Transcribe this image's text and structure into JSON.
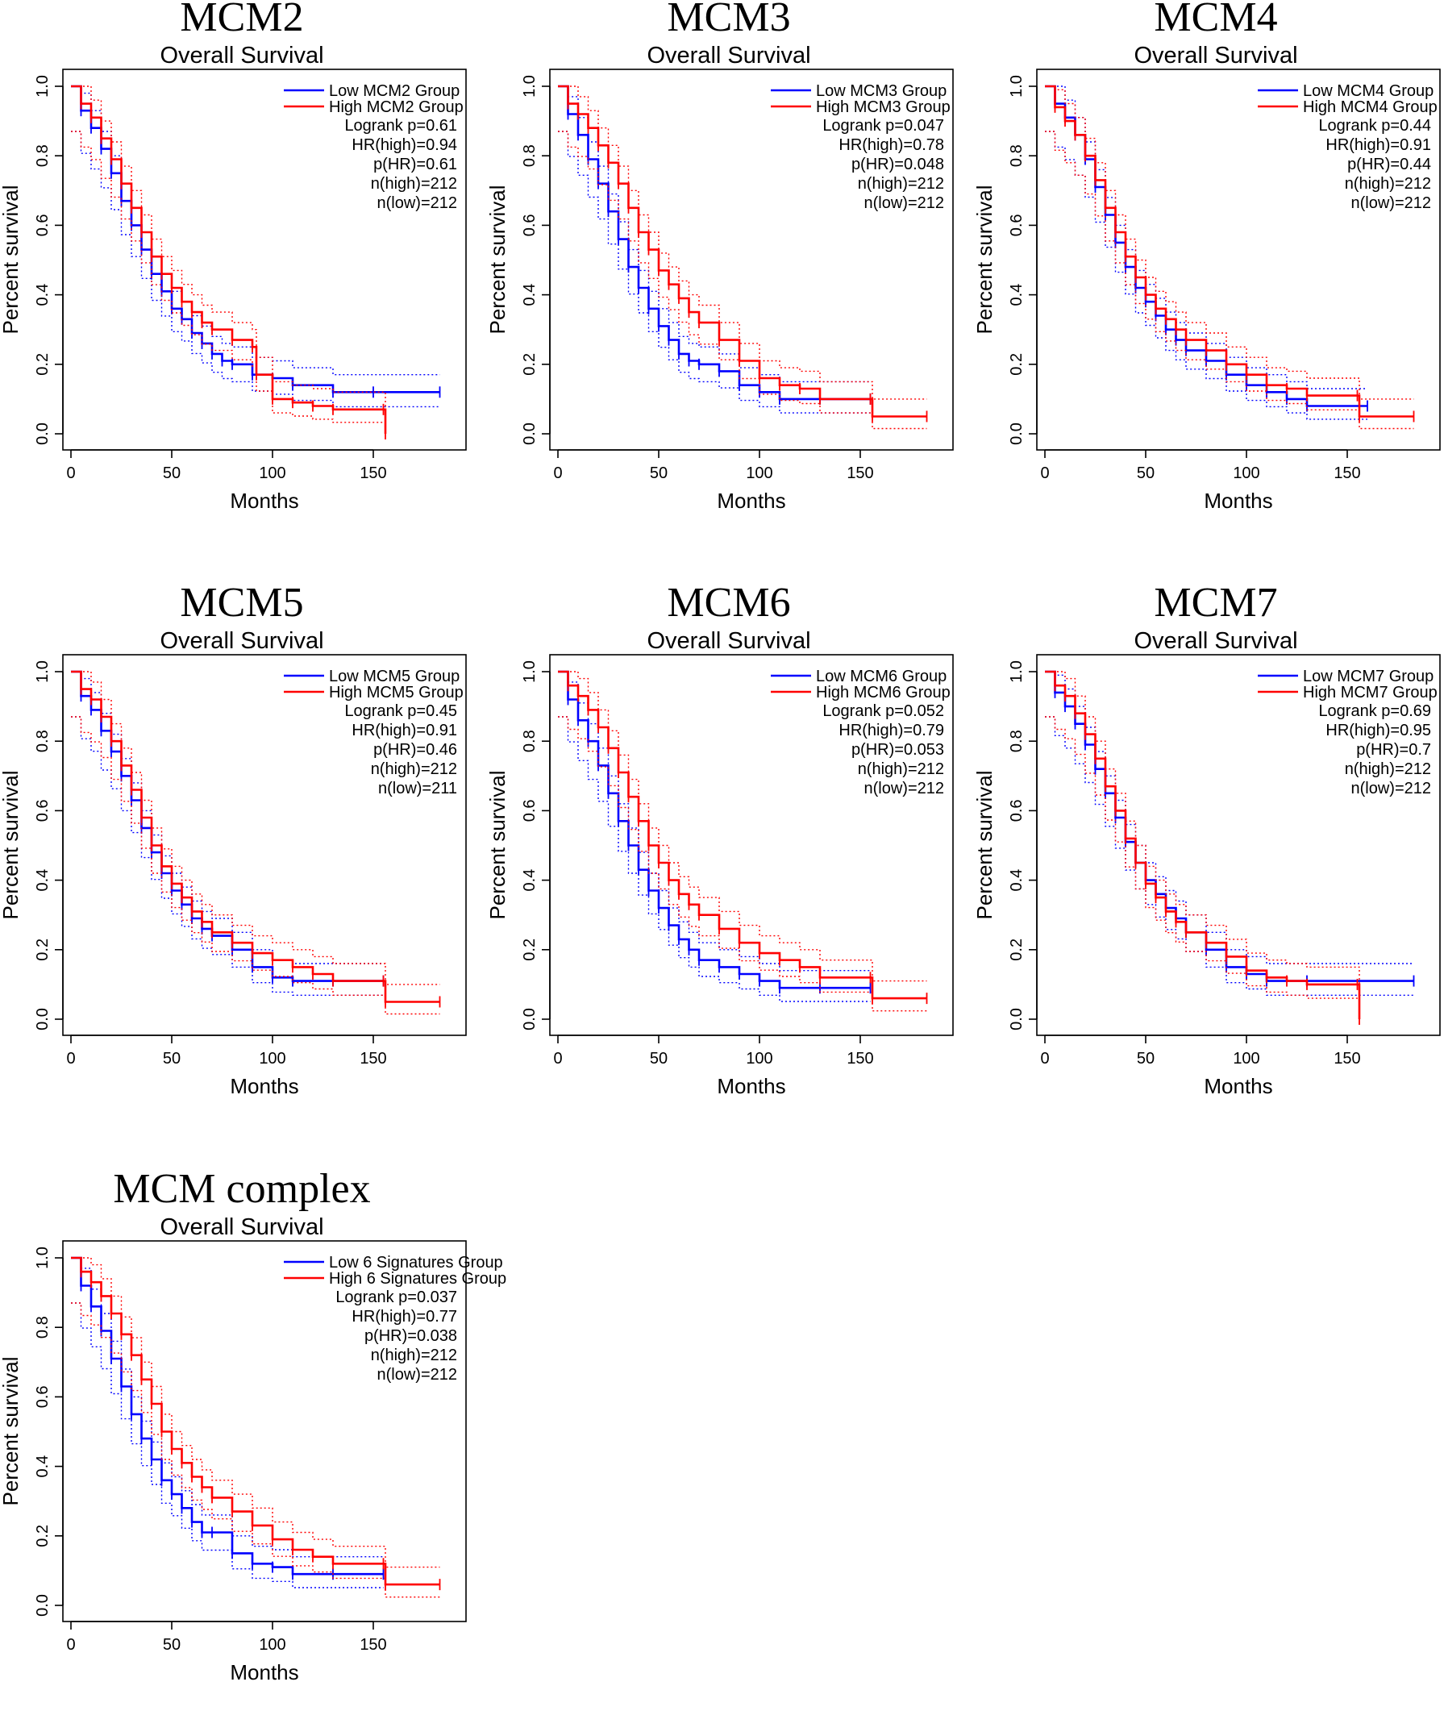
{
  "colors": {
    "low": "#0000ff",
    "high": "#ff0000",
    "axis": "#000000"
  },
  "chart_data": [
    {
      "type": "line",
      "gene_title": "MCM2",
      "title": "Overall Survival",
      "xlabel": "Months",
      "ylabel": "Percent survival",
      "xlim": [
        0,
        190
      ],
      "ylim": [
        0,
        1.0
      ],
      "xticks": [
        0,
        50,
        100,
        150
      ],
      "yticks": [
        "0.0",
        "0.2",
        "0.4",
        "0.6",
        "0.8",
        "1.0"
      ],
      "legend": [
        "Low MCM2 Group",
        "High MCM2 Group"
      ],
      "stats": [
        "Logrank p=0.61",
        "HR(high)=0.94",
        "p(HR)=0.61",
        "n(high)=212",
        "n(low)=212"
      ],
      "series": [
        {
          "name": "Low MCM2 Group",
          "x": [
            0,
            5,
            10,
            15,
            20,
            25,
            30,
            35,
            40,
            45,
            50,
            55,
            60,
            65,
            70,
            75,
            80,
            90,
            100,
            110,
            130,
            150,
            183
          ],
          "y": [
            1.0,
            0.93,
            0.88,
            0.82,
            0.75,
            0.67,
            0.6,
            0.53,
            0.46,
            0.41,
            0.36,
            0.33,
            0.29,
            0.26,
            0.23,
            0.21,
            0.2,
            0.17,
            0.16,
            0.14,
            0.12,
            0.12,
            0.12
          ]
        },
        {
          "name": "High MCM2 Group",
          "x": [
            0,
            5,
            10,
            15,
            20,
            25,
            30,
            35,
            40,
            45,
            50,
            55,
            60,
            65,
            70,
            80,
            90,
            92,
            100,
            110,
            120,
            130,
            155,
            156
          ],
          "y": [
            1.0,
            0.95,
            0.91,
            0.85,
            0.79,
            0.72,
            0.65,
            0.58,
            0.51,
            0.46,
            0.42,
            0.38,
            0.35,
            0.32,
            0.3,
            0.27,
            0.25,
            0.17,
            0.1,
            0.09,
            0.08,
            0.07,
            0.07,
            0.0
          ]
        }
      ]
    },
    {
      "type": "line",
      "gene_title": "MCM3",
      "title": "Overall Survival",
      "xlabel": "Months",
      "ylabel": "Percent survival",
      "xlim": [
        0,
        190
      ],
      "ylim": [
        0,
        1.0
      ],
      "xticks": [
        0,
        50,
        100,
        150
      ],
      "yticks": [
        "0.0",
        "0.2",
        "0.4",
        "0.6",
        "0.8",
        "1.0"
      ],
      "legend": [
        "Low MCM3 Group",
        "High MCM3 Group"
      ],
      "stats": [
        "Logrank p=0.047",
        "HR(high)=0.78",
        "p(HR)=0.048",
        "n(high)=212",
        "n(low)=212"
      ],
      "series": [
        {
          "name": "Low MCM3 Group",
          "x": [
            0,
            5,
            10,
            15,
            20,
            25,
            30,
            35,
            40,
            45,
            50,
            55,
            60,
            65,
            70,
            80,
            90,
            100,
            110,
            130,
            155
          ],
          "y": [
            1.0,
            0.92,
            0.86,
            0.79,
            0.72,
            0.64,
            0.56,
            0.48,
            0.42,
            0.36,
            0.31,
            0.27,
            0.23,
            0.21,
            0.2,
            0.18,
            0.14,
            0.12,
            0.1,
            0.1,
            0.1
          ]
        },
        {
          "name": "High MCM3 Group",
          "x": [
            0,
            5,
            10,
            15,
            20,
            25,
            30,
            35,
            40,
            45,
            50,
            55,
            60,
            65,
            70,
            80,
            90,
            100,
            110,
            120,
            130,
            155,
            156,
            183
          ],
          "y": [
            1.0,
            0.95,
            0.92,
            0.88,
            0.83,
            0.78,
            0.72,
            0.65,
            0.58,
            0.53,
            0.47,
            0.43,
            0.39,
            0.35,
            0.32,
            0.27,
            0.21,
            0.16,
            0.14,
            0.13,
            0.1,
            0.1,
            0.05,
            0.05
          ]
        }
      ]
    },
    {
      "type": "line",
      "gene_title": "MCM4",
      "title": "Overall Survival",
      "xlabel": "Months",
      "ylabel": "Percent survival",
      "xlim": [
        0,
        190
      ],
      "ylim": [
        0,
        1.0
      ],
      "xticks": [
        0,
        50,
        100,
        150
      ],
      "yticks": [
        "0.0",
        "0.2",
        "0.4",
        "0.6",
        "0.8",
        "1.0"
      ],
      "legend": [
        "Low MCM4 Group",
        "High MCM4 Group"
      ],
      "stats": [
        "Logrank p=0.44",
        "HR(high)=0.91",
        "p(HR)=0.44",
        "n(high)=212",
        "n(low)=212"
      ],
      "series": [
        {
          "name": "Low MCM4 Group",
          "x": [
            0,
            5,
            10,
            15,
            20,
            25,
            30,
            35,
            40,
            45,
            50,
            55,
            60,
            65,
            70,
            80,
            90,
            100,
            110,
            120,
            130,
            160
          ],
          "y": [
            1.0,
            0.95,
            0.91,
            0.86,
            0.79,
            0.71,
            0.63,
            0.55,
            0.48,
            0.42,
            0.38,
            0.34,
            0.3,
            0.27,
            0.24,
            0.21,
            0.17,
            0.14,
            0.12,
            0.1,
            0.08,
            0.08
          ]
        },
        {
          "name": "High MCM4 Group",
          "x": [
            0,
            5,
            10,
            15,
            20,
            25,
            30,
            35,
            40,
            45,
            50,
            55,
            60,
            65,
            70,
            80,
            90,
            100,
            110,
            120,
            130,
            155,
            156,
            183
          ],
          "y": [
            1.0,
            0.94,
            0.9,
            0.86,
            0.8,
            0.73,
            0.65,
            0.58,
            0.51,
            0.45,
            0.4,
            0.36,
            0.33,
            0.3,
            0.27,
            0.24,
            0.2,
            0.17,
            0.14,
            0.13,
            0.11,
            0.11,
            0.05,
            0.05
          ]
        }
      ]
    },
    {
      "type": "line",
      "gene_title": "MCM5",
      "title": "Overall Survival",
      "xlabel": "Months",
      "ylabel": "Percent survival",
      "xlim": [
        0,
        190
      ],
      "ylim": [
        0,
        1.0
      ],
      "xticks": [
        0,
        50,
        100,
        150
      ],
      "yticks": [
        "0.0",
        "0.2",
        "0.4",
        "0.6",
        "0.8",
        "1.0"
      ],
      "legend": [
        "Low MCM5 Group",
        "High MCM5 Group"
      ],
      "stats": [
        "Logrank p=0.45",
        "HR(high)=0.91",
        "p(HR)=0.46",
        "n(high)=212",
        "n(low)=211"
      ],
      "series": [
        {
          "name": "Low MCM5 Group",
          "x": [
            0,
            5,
            10,
            15,
            20,
            25,
            30,
            35,
            40,
            45,
            50,
            55,
            60,
            65,
            70,
            80,
            90,
            100,
            110,
            130,
            155
          ],
          "y": [
            1.0,
            0.93,
            0.89,
            0.83,
            0.77,
            0.7,
            0.63,
            0.55,
            0.48,
            0.42,
            0.37,
            0.33,
            0.29,
            0.26,
            0.24,
            0.2,
            0.15,
            0.12,
            0.11,
            0.11,
            0.11
          ]
        },
        {
          "name": "High MCM5 Group",
          "x": [
            0,
            5,
            10,
            15,
            20,
            25,
            30,
            35,
            40,
            45,
            50,
            55,
            60,
            65,
            70,
            80,
            90,
            100,
            110,
            120,
            130,
            155,
            156,
            183
          ],
          "y": [
            1.0,
            0.95,
            0.92,
            0.87,
            0.8,
            0.73,
            0.66,
            0.58,
            0.5,
            0.44,
            0.39,
            0.35,
            0.31,
            0.28,
            0.25,
            0.22,
            0.19,
            0.17,
            0.15,
            0.13,
            0.11,
            0.11,
            0.05,
            0.05
          ]
        }
      ]
    },
    {
      "type": "line",
      "gene_title": "MCM6",
      "title": "Overall Survival",
      "xlabel": "Months",
      "ylabel": "Percent survival",
      "xlim": [
        0,
        190
      ],
      "ylim": [
        0,
        1.0
      ],
      "xticks": [
        0,
        50,
        100,
        150
      ],
      "yticks": [
        "0.0",
        "0.2",
        "0.4",
        "0.6",
        "0.8",
        "1.0"
      ],
      "legend": [
        "Low MCM6 Group",
        "High MCM6 Group"
      ],
      "stats": [
        "Logrank p=0.052",
        "HR(high)=0.79",
        "p(HR)=0.053",
        "n(high)=212",
        "n(low)=212"
      ],
      "series": [
        {
          "name": "Low MCM6 Group",
          "x": [
            0,
            5,
            10,
            15,
            20,
            25,
            30,
            35,
            40,
            45,
            50,
            55,
            60,
            65,
            70,
            80,
            90,
            100,
            110,
            130,
            155
          ],
          "y": [
            1.0,
            0.92,
            0.86,
            0.8,
            0.73,
            0.65,
            0.57,
            0.5,
            0.43,
            0.37,
            0.32,
            0.27,
            0.23,
            0.2,
            0.17,
            0.15,
            0.13,
            0.11,
            0.09,
            0.09,
            0.09
          ]
        },
        {
          "name": "High MCM6 Group",
          "x": [
            0,
            5,
            10,
            15,
            20,
            25,
            30,
            35,
            40,
            45,
            50,
            55,
            60,
            65,
            70,
            80,
            90,
            100,
            110,
            120,
            130,
            155,
            156,
            183
          ],
          "y": [
            1.0,
            0.96,
            0.93,
            0.89,
            0.84,
            0.78,
            0.71,
            0.64,
            0.57,
            0.5,
            0.45,
            0.4,
            0.36,
            0.33,
            0.3,
            0.26,
            0.22,
            0.19,
            0.17,
            0.15,
            0.12,
            0.12,
            0.06,
            0.06
          ]
        }
      ]
    },
    {
      "type": "line",
      "gene_title": "MCM7",
      "title": "Overall Survival",
      "xlabel": "Months",
      "ylabel": "Percent survival",
      "xlim": [
        0,
        190
      ],
      "ylim": [
        0,
        1.0
      ],
      "xticks": [
        0,
        50,
        100,
        150
      ],
      "yticks": [
        "0.0",
        "0.2",
        "0.4",
        "0.6",
        "0.8",
        "1.0"
      ],
      "legend": [
        "Low MCM7 Group",
        "High MCM7 Group"
      ],
      "stats": [
        "Logrank p=0.69",
        "HR(high)=0.95",
        "p(HR)=0.7",
        "n(high)=212",
        "n(low)=212"
      ],
      "series": [
        {
          "name": "Low MCM7 Group",
          "x": [
            0,
            5,
            10,
            15,
            20,
            25,
            30,
            35,
            40,
            45,
            50,
            55,
            60,
            65,
            70,
            80,
            90,
            100,
            110,
            130,
            183
          ],
          "y": [
            1.0,
            0.94,
            0.9,
            0.85,
            0.79,
            0.72,
            0.65,
            0.58,
            0.51,
            0.45,
            0.4,
            0.36,
            0.32,
            0.29,
            0.25,
            0.2,
            0.15,
            0.13,
            0.11,
            0.11,
            0.11
          ]
        },
        {
          "name": "High MCM7 Group",
          "x": [
            0,
            5,
            10,
            15,
            20,
            25,
            30,
            35,
            40,
            45,
            50,
            55,
            60,
            65,
            70,
            80,
            90,
            100,
            110,
            120,
            130,
            155,
            156
          ],
          "y": [
            1.0,
            0.96,
            0.93,
            0.88,
            0.82,
            0.75,
            0.67,
            0.6,
            0.52,
            0.45,
            0.39,
            0.35,
            0.31,
            0.28,
            0.25,
            0.22,
            0.18,
            0.14,
            0.12,
            0.11,
            0.1,
            0.1,
            0.0
          ]
        }
      ]
    },
    {
      "type": "line",
      "gene_title": "MCM complex",
      "title": "Overall Survival",
      "xlabel": "Months",
      "ylabel": "Percent survival",
      "xlim": [
        0,
        190
      ],
      "ylim": [
        0,
        1.0
      ],
      "xticks": [
        0,
        50,
        100,
        150
      ],
      "yticks": [
        "0.0",
        "0.2",
        "0.4",
        "0.6",
        "0.8",
        "1.0"
      ],
      "legend": [
        "Low 6 Signatures Group",
        "High 6 Signatures Group"
      ],
      "stats": [
        "Logrank p=0.037",
        "HR(high)=0.77",
        "p(HR)=0.038",
        "n(high)=212",
        "n(low)=212"
      ],
      "series": [
        {
          "name": "Low 6 Signatures Group",
          "x": [
            0,
            5,
            10,
            15,
            20,
            25,
            30,
            35,
            40,
            45,
            50,
            55,
            60,
            65,
            70,
            80,
            90,
            100,
            110,
            130,
            155
          ],
          "y": [
            1.0,
            0.92,
            0.86,
            0.79,
            0.71,
            0.63,
            0.55,
            0.48,
            0.42,
            0.36,
            0.32,
            0.28,
            0.24,
            0.21,
            0.21,
            0.15,
            0.12,
            0.11,
            0.09,
            0.09,
            0.09
          ]
        },
        {
          "name": "High 6 Signatures Group",
          "x": [
            0,
            5,
            10,
            15,
            20,
            25,
            30,
            35,
            40,
            45,
            50,
            55,
            60,
            65,
            70,
            80,
            90,
            100,
            110,
            120,
            130,
            155,
            156,
            183
          ],
          "y": [
            1.0,
            0.96,
            0.93,
            0.89,
            0.84,
            0.78,
            0.72,
            0.65,
            0.58,
            0.5,
            0.45,
            0.41,
            0.37,
            0.34,
            0.31,
            0.27,
            0.23,
            0.19,
            0.16,
            0.14,
            0.12,
            0.12,
            0.06,
            0.06
          ]
        }
      ]
    }
  ]
}
